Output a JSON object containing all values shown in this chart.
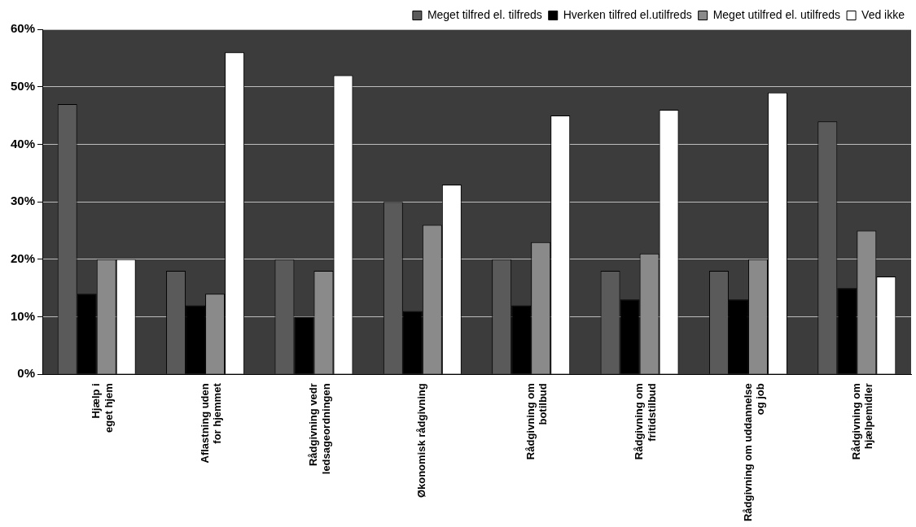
{
  "chart_data": {
    "type": "bar",
    "categories": [
      "Hjælp i eget hjem",
      "Aflastning uden for hjemmet",
      "Rådgivning vedr ledsageordningen",
      "Økonomisk rådgivning",
      "Rådgivning om botilbud",
      "Rådgivning om fritidstilbud",
      "Rådgivning om uddannelse og job",
      "Rådgivning om hjælpemidler"
    ],
    "series": [
      {
        "name": "Meget tilfred el. tilfreds",
        "color": "#5a5a5a",
        "values": [
          47,
          18,
          20,
          30,
          20,
          18,
          18,
          44
        ]
      },
      {
        "name": "Hverken tilfred el.utilfreds",
        "color": "#000000",
        "values": [
          14,
          12,
          10,
          11,
          12,
          13,
          13,
          15
        ]
      },
      {
        "name": "Meget utilfred el. utilfreds",
        "color": "#8a8a8a",
        "values": [
          20,
          14,
          18,
          26,
          23,
          21,
          20,
          25
        ]
      },
      {
        "name": "Ved ikke",
        "color": "#ffffff",
        "values": [
          20,
          56,
          52,
          33,
          45,
          46,
          49,
          17
        ]
      }
    ],
    "ylim": [
      0,
      60
    ],
    "yticks": [
      {
        "value": 0,
        "label": "0%"
      },
      {
        "value": 10,
        "label": "10%"
      },
      {
        "value": 20,
        "label": "20%"
      },
      {
        "value": 30,
        "label": "30%"
      },
      {
        "value": 40,
        "label": "40%"
      },
      {
        "value": 50,
        "label": "50%"
      },
      {
        "value": 60,
        "label": "60%"
      }
    ],
    "grid": "y",
    "legend": "top right"
  }
}
